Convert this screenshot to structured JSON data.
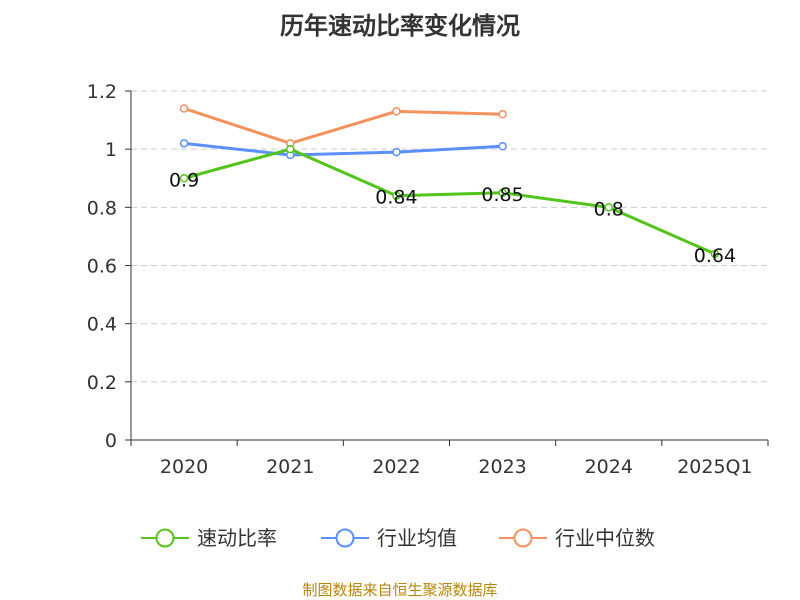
{
  "chart_data": {
    "type": "line",
    "title": "历年速动比率变化情况",
    "categories": [
      "2020",
      "2021",
      "2022",
      "2023",
      "2024",
      "2025Q1"
    ],
    "ylim": [
      0,
      1.2
    ],
    "yticks": [
      "0",
      "0.2",
      "0.4",
      "0.6",
      "0.8",
      "1",
      "1.2"
    ],
    "grid": true,
    "legend_position": "bottom",
    "series": [
      {
        "name": "速动比率",
        "color": "#52c41a",
        "values": [
          0.9,
          1.0,
          0.84,
          0.85,
          0.8,
          0.64
        ],
        "labels": [
          "0.9",
          "",
          "0.84",
          "0.85",
          "0.8",
          "0.64"
        ]
      },
      {
        "name": "行业均值",
        "color": "#5b8ff9",
        "values": [
          1.02,
          0.98,
          0.99,
          1.01,
          null,
          null
        ]
      },
      {
        "name": "行业中位数",
        "color": "#f4915c",
        "values": [
          1.14,
          1.02,
          1.13,
          1.12,
          null,
          null
        ]
      }
    ]
  },
  "source": "制图数据来自恒生聚源数据库"
}
